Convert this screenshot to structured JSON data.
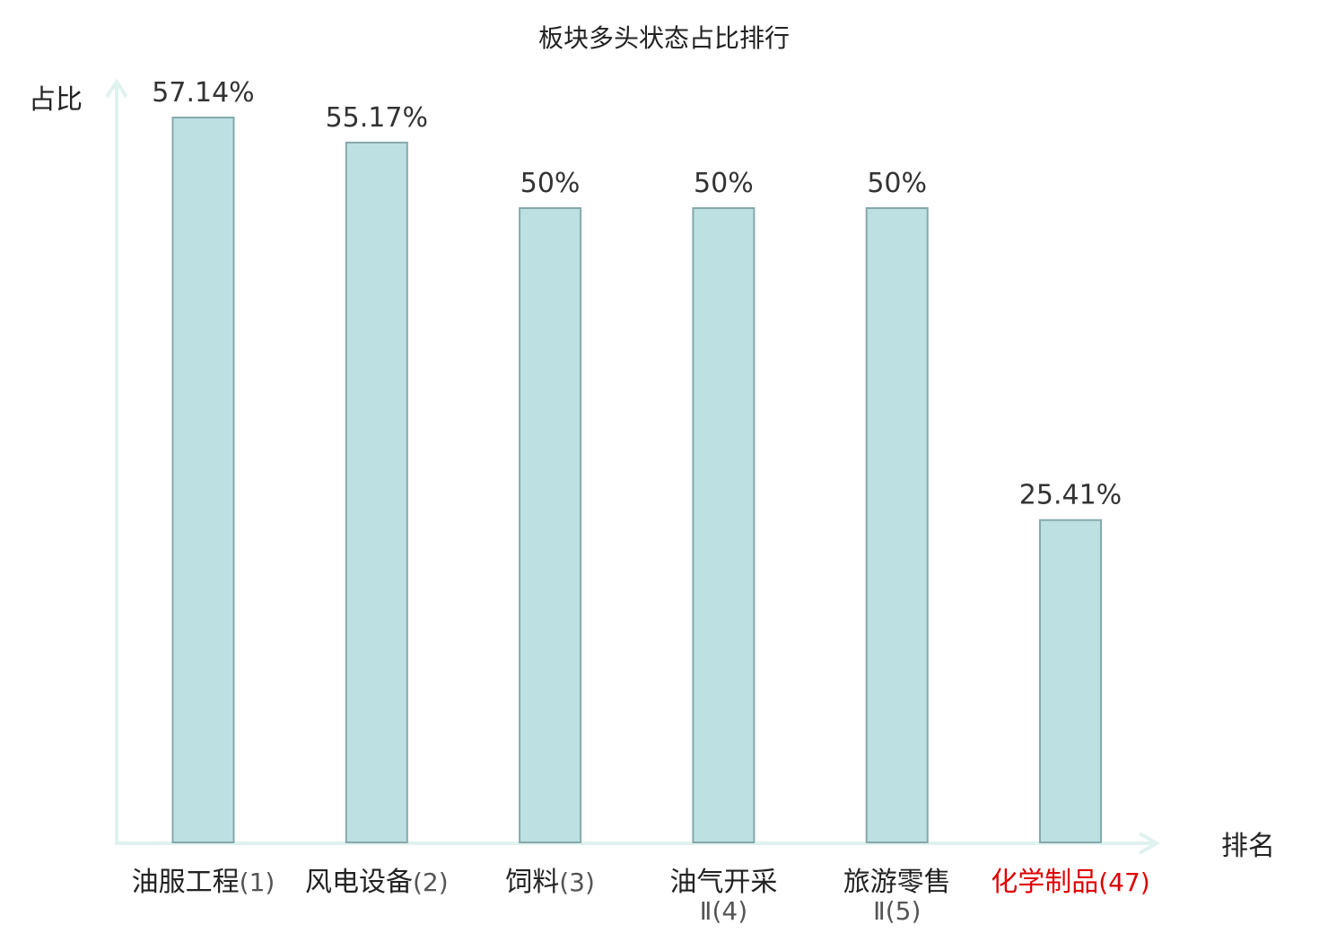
{
  "chart_data": {
    "type": "bar",
    "title": "板块多头状态占比排行",
    "ylabel": "占比",
    "xlabel": "排名",
    "categories": [
      {
        "name": "油服工程",
        "rank": "(1)",
        "highlight": false
      },
      {
        "name": "风电设备",
        "rank": "(2)",
        "highlight": false
      },
      {
        "name": "饲料",
        "rank": "(3)",
        "highlight": false
      },
      {
        "name": "油气开采",
        "name2": "Ⅱ",
        "rank": "(4)",
        "highlight": false
      },
      {
        "name": "旅游零售",
        "name2": "Ⅱ",
        "rank": "(5)",
        "highlight": false
      },
      {
        "name": "化学制品",
        "rank": "(47)",
        "highlight": true
      }
    ],
    "values": [
      57.14,
      55.17,
      50,
      50,
      50,
      25.41
    ],
    "value_labels": [
      "57.14%",
      "55.17%",
      "50%",
      "50%",
      "50%",
      "25.41%"
    ],
    "ylim": [
      0,
      60
    ],
    "grid": false,
    "colors": {
      "bar_fill": "#bde0e3",
      "bar_stroke": "#86a9ab",
      "axis": "#e0f2ef",
      "label_normal": "#222222",
      "rank_normal": "#555555",
      "label_highlight": "#e00000"
    }
  }
}
